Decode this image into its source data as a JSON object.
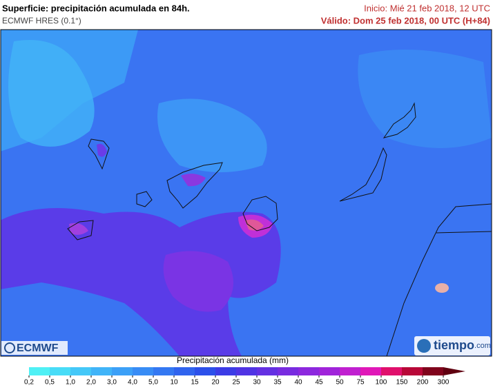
{
  "header": {
    "title": "Superficie: precipitación acumulada en 84h.",
    "model": "ECMWF HRES (0.1°)",
    "init": "Inicio: Mié 21 feb 2018, 12 UTC",
    "valid": "Válido: Dom 25 feb 2018, 00 UTC (H+84)"
  },
  "logos": {
    "left": "ECMWF",
    "right": "tiempo",
    "right_suffix": ".com"
  },
  "colorbar": {
    "title": "Precipitación acumulada (mm)",
    "labels": [
      "0,2",
      "0,5",
      "1,0",
      "2,0",
      "3,0",
      "4,0",
      "5,0",
      "10",
      "15",
      "20",
      "25",
      "30",
      "35",
      "40",
      "45",
      "50",
      "75",
      "100",
      "150",
      "200",
      "300"
    ],
    "colors": [
      "#4ff0f5",
      "#48dcf7",
      "#44c8f8",
      "#40b4f8",
      "#3ca0f7",
      "#388cf5",
      "#3478f2",
      "#3064ee",
      "#2c50ea",
      "#3c3ce6",
      "#5034e4",
      "#6430e2",
      "#782ce0",
      "#8c28de",
      "#a024da",
      "#c020d0",
      "#e018b8",
      "#e0106c",
      "#b80838",
      "#80041c"
    ],
    "arrow_color": "#600010"
  }
}
